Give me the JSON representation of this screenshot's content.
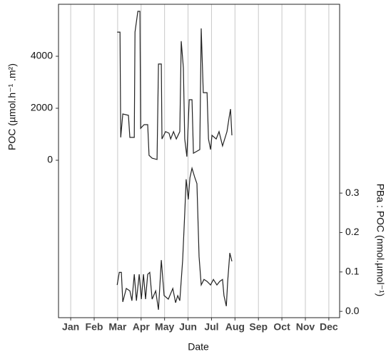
{
  "chart_data": {
    "type": "line",
    "xlabel": "Date",
    "ylabel": "POC (µmol.h⁻¹ .m²)",
    "y2label": "PBa : POC (nmol.µmol⁻¹)",
    "xlim": [
      0.48,
      12.46
    ],
    "xticks": [
      {
        "value": 1,
        "label": "Jan"
      },
      {
        "value": 2,
        "label": "Feb"
      },
      {
        "value": 3,
        "label": "Mar"
      },
      {
        "value": 4,
        "label": "Apr"
      },
      {
        "value": 5,
        "label": "May"
      },
      {
        "value": 6,
        "label": "Jun"
      },
      {
        "value": 7,
        "label": "Jul"
      },
      {
        "value": 8,
        "label": "Aug"
      },
      {
        "value": 9,
        "label": "Sep"
      },
      {
        "value": 10,
        "label": "Oct"
      },
      {
        "value": 11,
        "label": "Nov"
      },
      {
        "value": 12,
        "label": "Dec"
      }
    ],
    "ylim": [
      -6055,
      6000
    ],
    "yticks": [
      0,
      2000,
      4000
    ],
    "y2lim": [
      -0.016,
      0.779
    ],
    "y2ticks": [
      {
        "value": 0,
        "label": "0.0"
      },
      {
        "value": 0.1,
        "label": "0.1"
      },
      {
        "value": 0.2,
        "label": "0.2"
      },
      {
        "value": 0.3,
        "label": "0.3"
      }
    ],
    "grid": true,
    "series": [
      {
        "color": "#222222",
        "x": [
          2.98,
          3.1,
          3.13,
          3.22,
          3.46,
          3.52,
          3.71,
          3.74,
          3.86,
          3.95,
          3.98,
          4.13,
          4.28,
          4.34,
          4.47,
          4.68,
          4.74,
          4.86,
          4.89,
          5.04,
          5.19,
          5.26,
          5.38,
          5.5,
          5.65,
          5.71,
          5.8,
          5.86,
          5.95,
          6.05,
          6.17,
          6.23,
          6.5,
          6.56,
          6.65,
          6.81,
          6.87,
          6.96,
          7.02,
          7.2,
          7.32,
          7.47,
          7.66,
          7.75,
          7.81,
          7.87
        ],
        "values": [
          4930,
          4930,
          880,
          1780,
          1730,
          880,
          880,
          4930,
          5730,
          5730,
          1230,
          1370,
          1370,
          190,
          80,
          30,
          3700,
          3700,
          820,
          1100,
          1040,
          820,
          1100,
          820,
          1100,
          4580,
          3560,
          820,
          140,
          2330,
          2330,
          270,
          410,
          5070,
          2600,
          2600,
          820,
          410,
          960,
          820,
          1100,
          550,
          1100,
          1640,
          1970,
          960
        ]
      },
      {
        "color": "#222222",
        "axis": "y2",
        "x": [
          2.98,
          3.07,
          3.16,
          3.22,
          3.37,
          3.52,
          3.61,
          3.71,
          3.8,
          3.92,
          4.01,
          4.1,
          4.19,
          4.28,
          4.37,
          4.47,
          4.62,
          4.74,
          4.86,
          4.98,
          5.16,
          5.35,
          5.47,
          5.56,
          5.65,
          5.77,
          5.86,
          5.92,
          6.01,
          6.08,
          6.17,
          6.29,
          6.38,
          6.47,
          6.56,
          6.68,
          6.81,
          6.96,
          7.08,
          7.23,
          7.35,
          7.47,
          7.53,
          7.63,
          7.69,
          7.78,
          7.87
        ],
        "values": [
          0.067,
          0.099,
          0.099,
          0.024,
          0.058,
          0.052,
          0.027,
          0.094,
          0.027,
          0.094,
          0.031,
          0.094,
          0.031,
          0.094,
          0.099,
          0.031,
          0.052,
          0.004,
          0.13,
          0.04,
          0.031,
          0.058,
          0.022,
          0.04,
          0.027,
          0.13,
          0.248,
          0.335,
          0.284,
          0.339,
          0.363,
          0.339,
          0.324,
          0.139,
          0.067,
          0.081,
          0.076,
          0.067,
          0.081,
          0.067,
          0.076,
          0.081,
          0.04,
          0.013,
          0.076,
          0.148,
          0.127
        ]
      }
    ]
  }
}
